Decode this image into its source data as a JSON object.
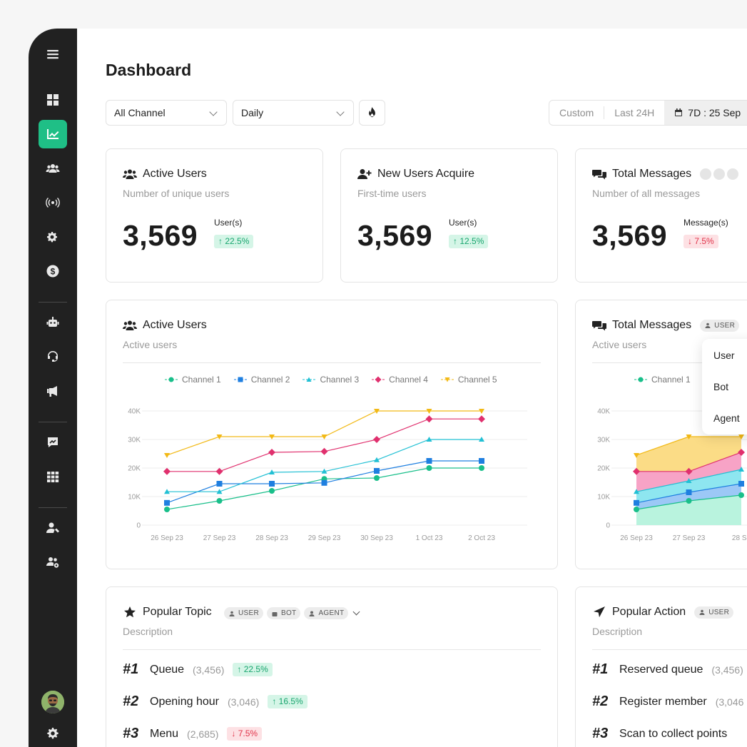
{
  "page": {
    "title": "Dashboard"
  },
  "filters": {
    "channel": "All Channel",
    "period": "Daily",
    "range": {
      "custom": "Custom",
      "last24h": "Last 24H",
      "selected": "7D : 25 Sep"
    }
  },
  "stats": [
    {
      "title": "Active Users",
      "subtitle": "Number of unique users",
      "value": "3,569",
      "unit": "User(s)",
      "change": "22.5%",
      "direction": "up"
    },
    {
      "title": "New Users Acquire",
      "subtitle": "First-time users",
      "value": "3,569",
      "unit": "User(s)",
      "change": "12.5%",
      "direction": "up"
    },
    {
      "title": "Total Messages",
      "subtitle": "Number of all messages",
      "value": "3,569",
      "unit": "Message(s)",
      "change": "7.5%",
      "direction": "down"
    }
  ],
  "line_card": {
    "title": "Active Users",
    "subtitle": "Active users"
  },
  "area_card": {
    "title": "Total Messages",
    "subtitle": "Active users",
    "chip": "USER",
    "legend": "Channel 1"
  },
  "dropdown": {
    "options": [
      "User",
      "Bot",
      "Agent"
    ]
  },
  "chips": {
    "user": "USER",
    "bot": "BOT",
    "agent": "AGENT"
  },
  "topics": {
    "title": "Popular Topic",
    "subtitle": "Description",
    "items": [
      {
        "rank": "#1",
        "name": "Queue",
        "count": "(3,456)",
        "change": "22.5%",
        "direction": "up"
      },
      {
        "rank": "#2",
        "name": "Opening hour",
        "count": "(3,046)",
        "change": "16.5%",
        "direction": "up"
      },
      {
        "rank": "#3",
        "name": "Menu",
        "count": "(2,685)",
        "change": "7.5%",
        "direction": "down"
      }
    ]
  },
  "actions": {
    "title": "Popular Action",
    "subtitle": "Description",
    "items": [
      {
        "rank": "#1",
        "name": "Reserved queue",
        "count": "(3,456)"
      },
      {
        "rank": "#2",
        "name": "Register member",
        "count": "(3,046"
      },
      {
        "rank": "#3",
        "name": "Scan to collect points",
        "count": ""
      }
    ]
  },
  "icons": {
    "sidebar": [
      "menu-icon",
      "dashboard-icon",
      "analytics-icon",
      "users-icon",
      "broadcast-icon",
      "settings-icon",
      "billing-icon",
      "bot-icon",
      "support-icon",
      "megaphone-icon",
      "reports-icon",
      "apps-icon",
      "user-manage-icon",
      "team-settings-icon",
      "settings-icon"
    ]
  },
  "colors": {
    "accent": "#1fbf86",
    "channel1": "#19bf8a",
    "channel2": "#1f7fe0",
    "channel3": "#22c0d4",
    "channel4": "#e0306e",
    "channel5": "#f2b916"
  },
  "chart_data": [
    {
      "type": "line",
      "title": "Active Users",
      "x": [
        "26 Sep 23",
        "27 Sep 23",
        "28 Sep 23",
        "29 Sep 23",
        "30 Sep 23",
        "1 Oct 23",
        "2 Oct 23"
      ],
      "ylim": [
        0,
        40000
      ],
      "yticks": [
        "0",
        "10K",
        "20K",
        "30K",
        "40K"
      ],
      "grid": true,
      "legend": "top",
      "series": [
        {
          "name": "Channel 1",
          "values": [
            5500,
            8500,
            12000,
            16200,
            16500,
            20000,
            20000
          ]
        },
        {
          "name": "Channel 2",
          "values": [
            7800,
            14500,
            14500,
            14800,
            19000,
            22500,
            22500
          ]
        },
        {
          "name": "Channel 3",
          "values": [
            11700,
            11700,
            18500,
            18800,
            22800,
            30000,
            30000
          ]
        },
        {
          "name": "Channel 4",
          "values": [
            18800,
            18800,
            25500,
            25800,
            30000,
            37200,
            37200
          ]
        },
        {
          "name": "Channel 5",
          "values": [
            24500,
            31000,
            31000,
            31000,
            40000,
            40000,
            40000
          ]
        }
      ]
    },
    {
      "type": "area",
      "title": "Total Messages",
      "x": [
        "26 Sep 23",
        "27 Sep 23",
        "28 Se"
      ],
      "ylim": [
        0,
        40000
      ],
      "yticks": [
        "0",
        "10K",
        "20K",
        "30K",
        "40K"
      ],
      "grid": true,
      "legend": "top",
      "series": [
        {
          "name": "Channel 1",
          "values": [
            5500,
            8500,
            10500
          ]
        },
        {
          "values": [
            7800,
            11500,
            14500
          ]
        },
        {
          "values": [
            11700,
            15500,
            19500
          ]
        },
        {
          "values": [
            18800,
            18800,
            25500
          ]
        },
        {
          "values": [
            24500,
            31000,
            31000
          ]
        }
      ]
    }
  ]
}
